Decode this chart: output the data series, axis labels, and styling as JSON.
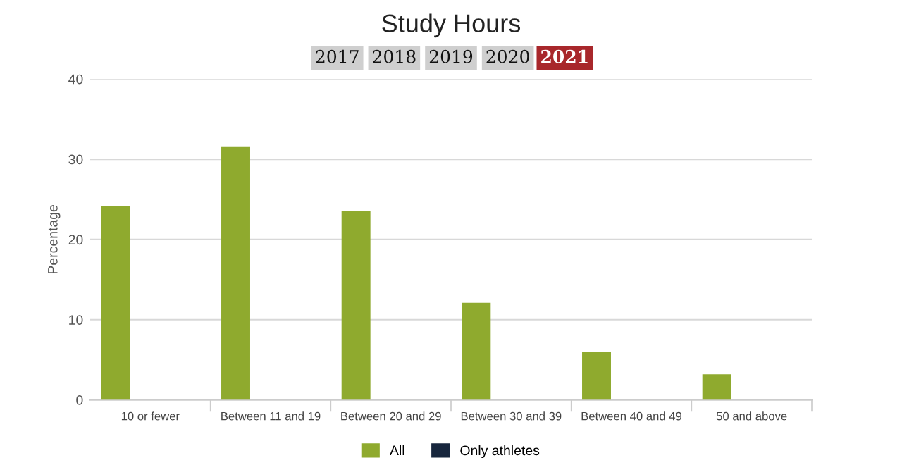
{
  "chart_data": {
    "type": "bar",
    "title": "Study Hours",
    "ylabel": "Percentage",
    "annotations": [
      "2017",
      "2018",
      "2019",
      "2020",
      "2021"
    ],
    "categories": [
      "10 or fewer",
      "Between 11 and 19",
      "Between 20 and 29",
      "Between 30 and 39",
      "Between 40 and 49",
      "50 and above"
    ],
    "series": [
      {
        "name": "All",
        "color": "#8faa2e",
        "values": [
          24.2,
          31.6,
          23.6,
          12.1,
          6.0,
          3.2
        ]
      },
      {
        "name": "Only athletes",
        "color": "#17263d",
        "values": [
          null,
          null,
          null,
          null,
          null,
          null
        ]
      }
    ],
    "ylim": [
      0,
      40
    ],
    "yticks": [
      0,
      10,
      20,
      30,
      40
    ],
    "grid": "y",
    "legend": "bottom"
  }
}
